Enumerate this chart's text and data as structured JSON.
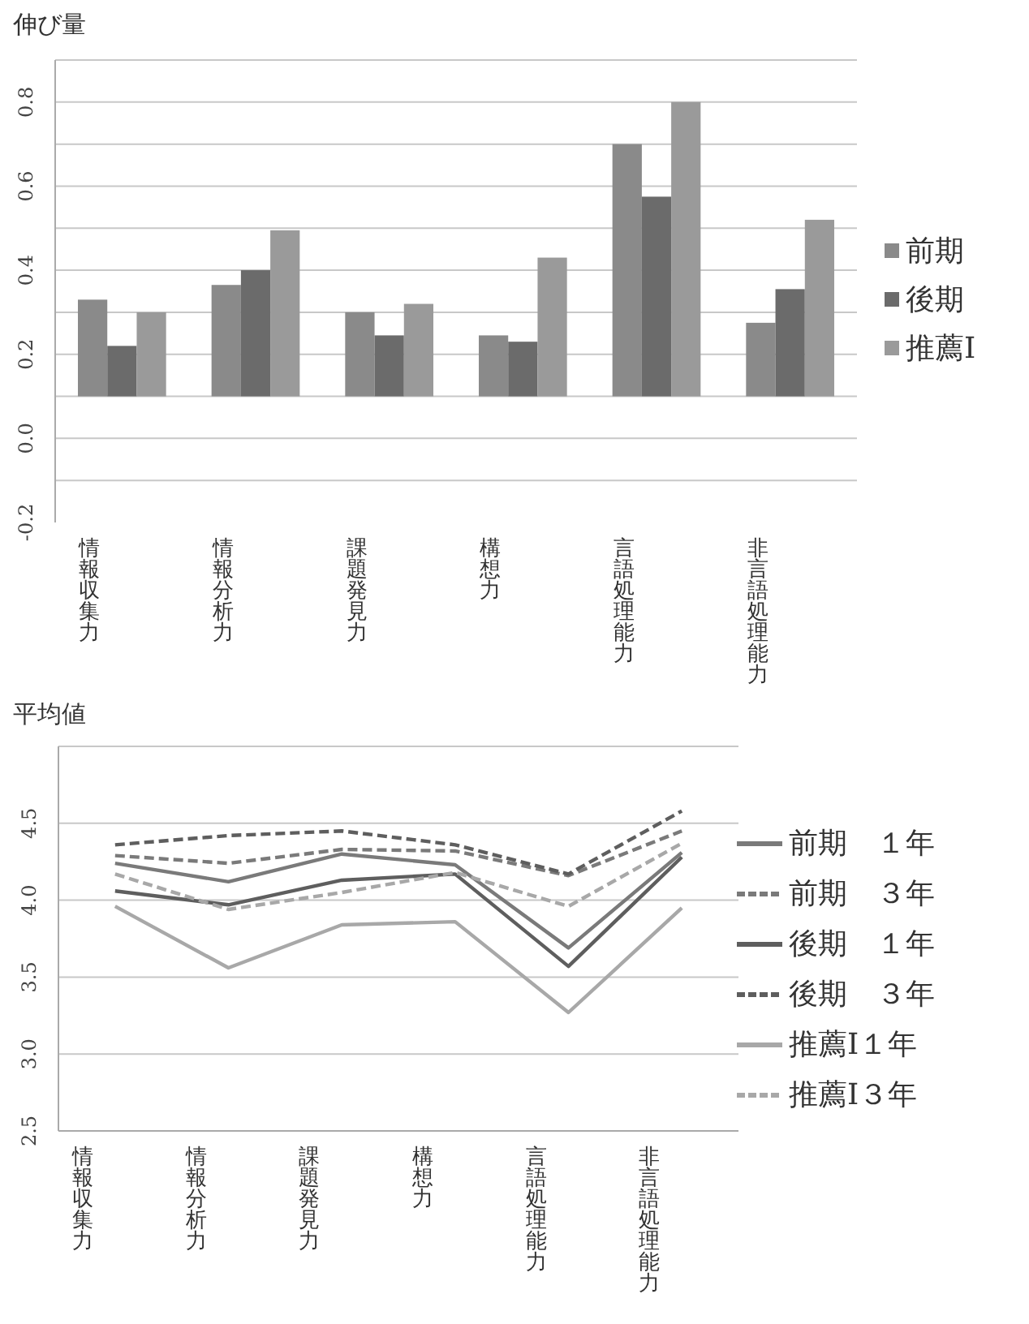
{
  "chart_data": [
    {
      "type": "bar",
      "title": "伸び量",
      "categories": [
        "情報収集力",
        "情報分析力",
        "課題発見力",
        "構想力",
        "言語処理能力",
        "非言語処理能力"
      ],
      "series": [
        {
          "name": "前期",
          "color": "#8a8a8a",
          "base": [
            0.1,
            0.1,
            0.1,
            0.1,
            0.1,
            0.1
          ],
          "values": [
            0.23,
            0.265,
            0.2,
            0.145,
            0.6,
            0.175
          ]
        },
        {
          "name": "後期",
          "color": "#6b6b6b",
          "base": [
            0.1,
            0.1,
            0.1,
            0.1,
            0.1,
            0.1
          ],
          "values": [
            0.12,
            0.3,
            0.145,
            0.13,
            0.475,
            0.255
          ]
        },
        {
          "name": "推薦Ⅰ",
          "color": "#9a9a9a",
          "base": [
            0.1,
            0.1,
            0.1,
            0.1,
            0.1,
            0.1
          ],
          "values": [
            0.2,
            0.395,
            0.22,
            0.33,
            0.7,
            0.42
          ]
        }
      ],
      "ylim": [
        -0.2,
        0.9
      ],
      "yticks": [
        -0.2,
        {
          "value": -0.1,
          "label": null
        },
        "0.0",
        {
          "value": 0.1,
          "label": null
        },
        0.2,
        {
          "value": 0.3,
          "label": null
        },
        0.4,
        {
          "value": 0.5,
          "label": null
        },
        0.6,
        {
          "value": 0.7,
          "label": null
        },
        0.8,
        {
          "value": 0.9,
          "label": null
        }
      ],
      "grid": "y",
      "legend": "right"
    },
    {
      "type": "line",
      "title": "平均値",
      "categories": [
        "情報収集力",
        "情報分析力",
        "課題発見力",
        "構想力",
        "言語処理能力",
        "非言語処理能力"
      ],
      "series": [
        {
          "name": "前期　１年",
          "color": "#7a7a7a",
          "line_style": "solid",
          "values": [
            4.24,
            4.12,
            4.3,
            4.23,
            3.69,
            4.31
          ]
        },
        {
          "name": "前期　３年",
          "color": "#7a7a7a",
          "line_style": "dashed",
          "values": [
            4.29,
            4.24,
            4.33,
            4.32,
            4.16,
            4.45
          ]
        },
        {
          "name": "後期　１年",
          "color": "#5e5e5e",
          "line_style": "solid",
          "values": [
            4.06,
            3.97,
            4.13,
            4.17,
            3.57,
            4.28
          ]
        },
        {
          "name": "後期　３年",
          "color": "#5e5e5e",
          "line_style": "dashed",
          "values": [
            4.36,
            4.42,
            4.45,
            4.36,
            4.17,
            4.58
          ]
        },
        {
          "name": "推薦Ⅰ１年",
          "color": "#a8a8a8",
          "line_style": "solid",
          "values": [
            3.96,
            3.56,
            3.84,
            3.86,
            3.27,
            3.95
          ]
        },
        {
          "name": "推薦Ⅰ３年",
          "color": "#a8a8a8",
          "line_style": "dashed",
          "values": [
            4.17,
            3.94,
            4.05,
            4.18,
            3.96,
            4.37
          ]
        }
      ],
      "ylim": [
        2.5,
        5.0
      ],
      "yticks": [
        2.5,
        "3.0",
        3.5,
        "4.0",
        4.5,
        {
          "value": 5.0,
          "label": null
        }
      ],
      "grid": "y",
      "legend": "right"
    }
  ]
}
